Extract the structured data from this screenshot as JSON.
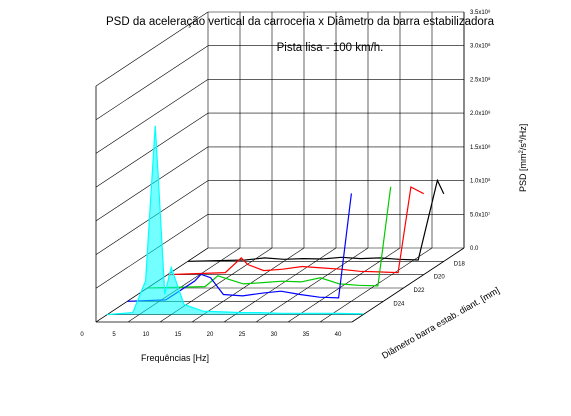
{
  "chart_data": {
    "type": "3d-line",
    "title": "PSD da aceleração vertical da carroceria x Diâmetro da barra estabilizadora",
    "subtitle": "Pista lisa - 100 km/h.",
    "xlabel": "Frequências [Hz]",
    "ylabel": "Diâmetro barra estab. diant. [mm]",
    "zlabel_parts": {
      "a": "PSD [mm",
      "sup": "2",
      "b": "/s",
      "sup2": "4",
      "c": "/Hz]"
    },
    "x_ticks": [
      "0",
      "5",
      "10",
      "15",
      "20",
      "25",
      "30",
      "35",
      "40"
    ],
    "xlim": [
      0,
      40
    ],
    "z_ticks": [
      "0.0",
      "5.0x10⁷",
      "1.0x10⁸",
      "1.5x10⁸",
      "2.0x10⁸",
      "2.5x10⁸",
      "3.0x10⁸",
      "3.5x10⁸"
    ],
    "zlim": [
      0,
      350000000
    ],
    "series": [
      {
        "name": "D18",
        "color": "#000000",
        "x": [
          0,
          9,
          12,
          15,
          18,
          21,
          24,
          27,
          30,
          33,
          36,
          39,
          40
        ],
        "y": [
          0,
          2000000,
          5000000,
          3000000,
          4000000,
          3500000,
          6000000,
          4000000,
          5000000,
          3000000,
          2000000,
          120000000,
          100000000
        ]
      },
      {
        "name": "D20",
        "color": "#ff0000",
        "x": [
          0,
          9,
          11.5,
          12.5,
          15,
          18,
          21,
          24,
          27,
          30,
          33,
          36,
          38,
          40
        ],
        "y": [
          0,
          3000000,
          25000000,
          15000000,
          6000000,
          8000000,
          12000000,
          10000000,
          8000000,
          5000000,
          4000000,
          3000000,
          130000000,
          120000000
        ]
      },
      {
        "name": "D22",
        "color": "#00cc00",
        "x": [
          0,
          9,
          11,
          13,
          15,
          18,
          21,
          24,
          27,
          30,
          33,
          36,
          38
        ],
        "y": [
          0,
          2000000,
          18000000,
          12000000,
          6000000,
          8000000,
          10000000,
          9000000,
          15000000,
          6000000,
          4000000,
          3000000,
          150000000
        ]
      },
      {
        "name": "D24",
        "color": "#0000ff",
        "x": [
          0,
          6,
          10.5,
          11.5,
          13,
          15,
          18,
          21,
          24,
          27,
          30,
          33,
          35
        ],
        "y": [
          0,
          2000000,
          30000000,
          40000000,
          35000000,
          10000000,
          8000000,
          12000000,
          15000000,
          10000000,
          6000000,
          5000000,
          160000000
        ]
      },
      {
        "name": "",
        "color": "#00ffff",
        "x": [
          0,
          4,
          6,
          7.5,
          8,
          9,
          10,
          12,
          15,
          18,
          21,
          24,
          27,
          30,
          33,
          36,
          40
        ],
        "y": [
          0,
          3000000,
          50000000,
          280000000,
          200000000,
          30000000,
          70000000,
          15000000,
          5000000,
          4000000,
          3000000,
          3000000,
          2000000,
          2000000,
          2000000,
          2000000,
          1000000
        ]
      }
    ]
  }
}
